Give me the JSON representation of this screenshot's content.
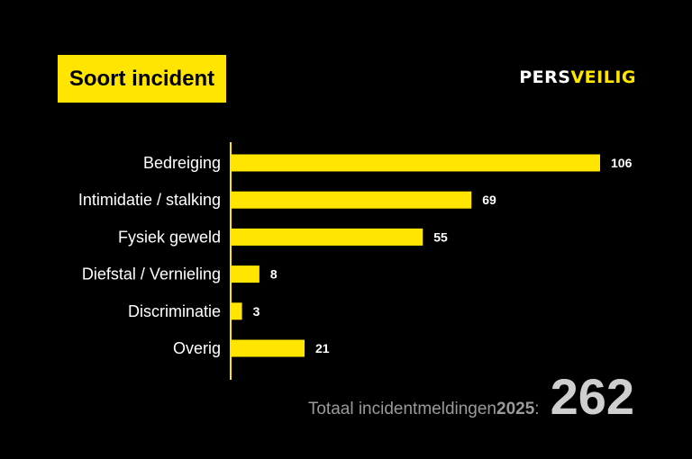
{
  "header": {
    "title": "Soort incident",
    "logo_part1": "PERS",
    "logo_part2": "VEILIG"
  },
  "chart_data": {
    "type": "bar",
    "orientation": "horizontal",
    "title": "Soort incident",
    "categories": [
      "Bedreiging",
      "Intimidatie / stalking",
      "Fysiek geweld",
      "Diefstal / Vernieling",
      "Discriminatie",
      "Overig"
    ],
    "values": [
      106,
      69,
      55,
      8,
      3,
      21
    ],
    "xlim": [
      0,
      106
    ],
    "bar_color": "#ffe500",
    "grid": false
  },
  "footer": {
    "label": "Totaal incidentmeldingen ",
    "year": "2025",
    "colon": ":",
    "total": "262"
  },
  "colors": {
    "background": "#000000",
    "accent": "#ffe500",
    "text": "#ffffff",
    "muted": "#9a9a9a"
  }
}
